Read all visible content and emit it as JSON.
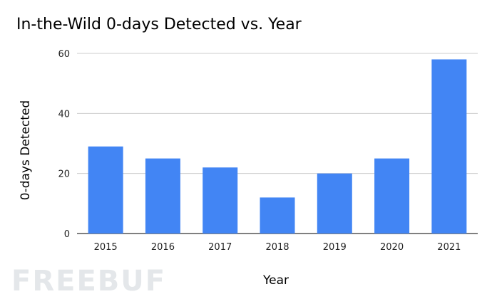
{
  "title": "In-the-Wild 0-days Detected vs. Year",
  "watermark": "FREEBUF",
  "chart_data": {
    "type": "bar",
    "title": "In-the-Wild 0-days Detected vs. Year",
    "xlabel": "Year",
    "ylabel": "0-days Detected",
    "categories": [
      "2015",
      "2016",
      "2017",
      "2018",
      "2019",
      "2020",
      "2021"
    ],
    "values": [
      29,
      25,
      22,
      12,
      20,
      25,
      58
    ],
    "ylim": [
      0,
      60
    ],
    "yticks": [
      "0",
      "20",
      "40",
      "60"
    ],
    "grid": true,
    "legend": "none",
    "bar_color": "#4285f4",
    "grid_color": "#cccccc"
  }
}
